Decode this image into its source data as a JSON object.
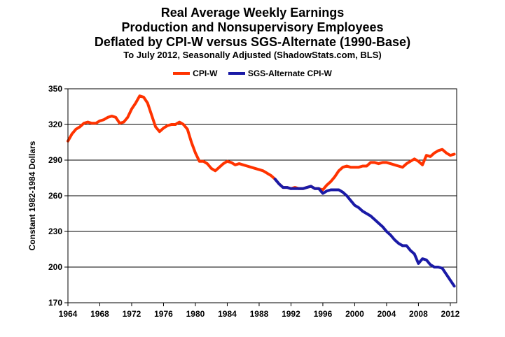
{
  "chart_data": {
    "type": "line",
    "title": "Real Average Weekly Earnings",
    "title_line2": "Production and Nonsupervisory Employees",
    "title_line3": "Deflated by CPI-W versus SGS-Alternate (1990-Base)",
    "subtitle": "To July 2012, Seasonally Adjusted (ShadowStats.com, BLS)",
    "xlabel": "",
    "ylabel": "Constant 1982-1984 Dollars",
    "xlim": [
      1964,
      2012.8
    ],
    "ylim": [
      170,
      350
    ],
    "x_ticks": [
      "1964",
      "1968",
      "1972",
      "1976",
      "1980",
      "1984",
      "1988",
      "1992",
      "1996",
      "2000",
      "2004",
      "2008",
      "2012"
    ],
    "y_ticks": [
      "170",
      "200",
      "230",
      "260",
      "290",
      "320",
      "350"
    ],
    "grid": true,
    "legend_position": "top",
    "series": [
      {
        "name": "CPI-W",
        "color": "#ff3300",
        "x": [
          1964.0,
          1964.5,
          1965.0,
          1965.5,
          1966.0,
          1966.5,
          1967.0,
          1967.5,
          1968.0,
          1968.5,
          1969.0,
          1969.5,
          1970.0,
          1970.5,
          1971.0,
          1971.5,
          1972.0,
          1972.5,
          1973.0,
          1973.5,
          1974.0,
          1974.5,
          1975.0,
          1975.5,
          1976.0,
          1976.5,
          1977.0,
          1977.5,
          1978.0,
          1978.5,
          1979.0,
          1979.5,
          1980.0,
          1980.5,
          1981.0,
          1981.5,
          1982.0,
          1982.5,
          1983.0,
          1983.5,
          1984.0,
          1984.5,
          1985.0,
          1985.5,
          1986.0,
          1986.5,
          1987.0,
          1987.5,
          1988.0,
          1988.5,
          1989.0,
          1989.5,
          1990.0,
          1990.5,
          1991.0,
          1991.5,
          1992.0,
          1992.5,
          1993.0,
          1993.5,
          1994.0,
          1994.5,
          1995.0,
          1995.5,
          1996.0,
          1996.5,
          1997.0,
          1997.5,
          1998.0,
          1998.5,
          1999.0,
          1999.5,
          2000.0,
          2000.5,
          2001.0,
          2001.5,
          2002.0,
          2002.5,
          2003.0,
          2003.5,
          2004.0,
          2004.5,
          2005.0,
          2005.5,
          2006.0,
          2006.5,
          2007.0,
          2007.5,
          2008.0,
          2008.5,
          2009.0,
          2009.5,
          2010.0,
          2010.5,
          2011.0,
          2011.5,
          2012.0,
          2012.5
        ],
        "values": [
          306,
          312,
          316,
          318,
          321,
          322,
          321,
          321,
          323,
          324,
          326,
          327,
          326,
          321,
          322,
          326,
          333,
          338,
          344,
          343,
          338,
          328,
          318,
          314,
          317,
          319,
          320,
          320,
          322,
          320,
          316,
          305,
          296,
          289,
          289,
          287,
          283,
          281,
          284,
          287,
          289,
          288,
          286,
          287,
          286,
          285,
          284,
          283,
          282,
          281,
          279,
          277,
          274,
          270,
          267,
          267,
          266,
          267,
          266,
          266,
          267,
          268,
          266,
          266,
          265,
          269,
          272,
          276,
          281,
          284,
          285,
          284,
          284,
          284,
          285,
          285,
          288,
          288,
          287,
          288,
          288,
          287,
          286,
          285,
          284,
          287,
          289,
          291,
          289,
          286,
          294,
          293,
          296,
          298,
          299,
          296,
          294,
          295
        ]
      },
      {
        "name": "SGS-Alternate CPI-W",
        "color": "#1a1aa6",
        "x": [
          1990.0,
          1990.5,
          1991.0,
          1991.5,
          1992.0,
          1992.5,
          1993.0,
          1993.5,
          1994.0,
          1994.5,
          1995.0,
          1995.5,
          1996.0,
          1996.5,
          1997.0,
          1997.5,
          1998.0,
          1998.5,
          1999.0,
          1999.5,
          2000.0,
          2000.5,
          2001.0,
          2001.5,
          2002.0,
          2002.5,
          2003.0,
          2003.5,
          2004.0,
          2004.5,
          2005.0,
          2005.5,
          2006.0,
          2006.5,
          2007.0,
          2007.5,
          2008.0,
          2008.5,
          2009.0,
          2009.5,
          2010.0,
          2010.5,
          2011.0,
          2011.5,
          2012.0,
          2012.5
        ],
        "values": [
          274,
          270,
          267,
          267,
          266,
          266,
          266,
          266,
          267,
          268,
          266,
          266,
          262,
          264,
          265,
          265,
          265,
          263,
          260,
          256,
          252,
          250,
          247,
          245,
          243,
          240,
          237,
          234,
          230,
          227,
          223,
          220,
          218,
          218,
          214,
          211,
          203,
          207,
          206,
          202,
          200,
          200,
          199,
          194,
          189,
          184
        ]
      }
    ]
  }
}
